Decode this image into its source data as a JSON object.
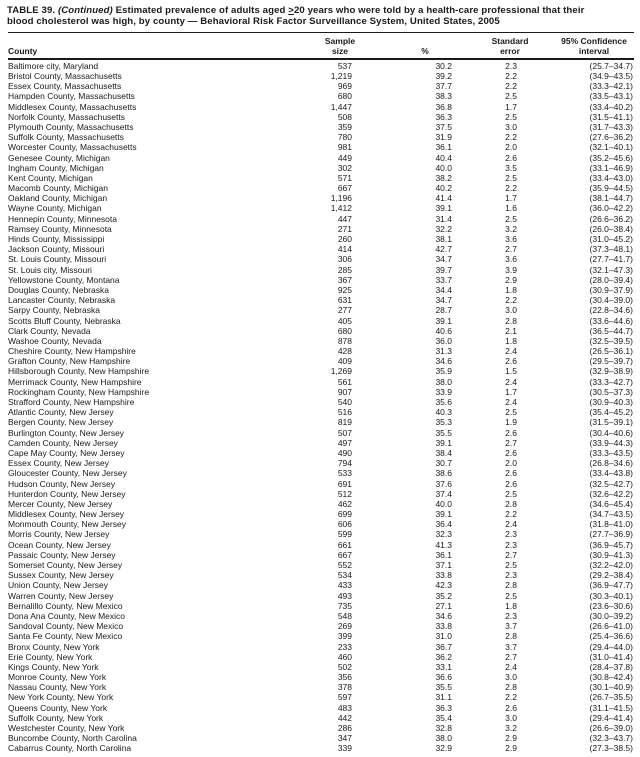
{
  "title": {
    "part1": "TABLE 39. ",
    "continued": "(Continued)",
    "part2": " Estimated prevalence of adults aged ",
    "geq": ">",
    "part3": "20 years who were told by a health-care professional that their",
    "line2": "blood cholesterol was high, by county — Behavioral Risk Factor Surveillance System, United States, 2005"
  },
  "table": {
    "columns": {
      "county": "County",
      "sample_size": "Sample\nsize",
      "percent": "%",
      "standard_error": "Standard\nerror",
      "confidence_interval": "95% Confidence\ninterval"
    },
    "rows": [
      {
        "county": "Baltimore city, Maryland",
        "sample_size": "537",
        "percent": "30.2",
        "standard_error": "2.3",
        "confidence_interval": "(25.7–34.7)"
      },
      {
        "county": "Bristol County, Massachusetts",
        "sample_size": "1,219",
        "percent": "39.2",
        "standard_error": "2.2",
        "confidence_interval": "(34.9–43.5)"
      },
      {
        "county": "Essex County, Massachusetts",
        "sample_size": "969",
        "percent": "37.7",
        "standard_error": "2.2",
        "confidence_interval": "(33.3–42.1)"
      },
      {
        "county": "Hampden County, Massachusetts",
        "sample_size": "680",
        "percent": "38.3",
        "standard_error": "2.5",
        "confidence_interval": "(33.5–43.1)"
      },
      {
        "county": "Middlesex County, Massachusetts",
        "sample_size": "1,447",
        "percent": "36.8",
        "standard_error": "1.7",
        "confidence_interval": "(33.4–40.2)"
      },
      {
        "county": "Norfolk County, Massachusetts",
        "sample_size": "508",
        "percent": "36.3",
        "standard_error": "2.5",
        "confidence_interval": "(31.5–41.1)"
      },
      {
        "county": "Plymouth County, Massachusetts",
        "sample_size": "359",
        "percent": "37.5",
        "standard_error": "3.0",
        "confidence_interval": "(31.7–43.3)"
      },
      {
        "county": "Suffolk County, Massachusetts",
        "sample_size": "780",
        "percent": "31.9",
        "standard_error": "2.2",
        "confidence_interval": "(27.6–36.2)"
      },
      {
        "county": "Worcester County, Massachusetts",
        "sample_size": "981",
        "percent": "36.1",
        "standard_error": "2.0",
        "confidence_interval": "(32.1–40.1)"
      },
      {
        "county": "Genesee County, Michigan",
        "sample_size": "449",
        "percent": "40.4",
        "standard_error": "2.6",
        "confidence_interval": "(35.2–45.6)"
      },
      {
        "county": "Ingham County, Michigan",
        "sample_size": "302",
        "percent": "40.0",
        "standard_error": "3.5",
        "confidence_interval": "(33.1–46.9)"
      },
      {
        "county": "Kent County, Michigan",
        "sample_size": "571",
        "percent": "38.2",
        "standard_error": "2.5",
        "confidence_interval": "(33.4–43.0)"
      },
      {
        "county": "Macomb County, Michigan",
        "sample_size": "667",
        "percent": "40.2",
        "standard_error": "2.2",
        "confidence_interval": "(35.9–44.5)"
      },
      {
        "county": "Oakland County, Michigan",
        "sample_size": "1,196",
        "percent": "41.4",
        "standard_error": "1.7",
        "confidence_interval": "(38.1–44.7)"
      },
      {
        "county": "Wayne County, Michigan",
        "sample_size": "1,412",
        "percent": "39.1",
        "standard_error": "1.6",
        "confidence_interval": "(36.0–42.2)"
      },
      {
        "county": "Hennepin County, Minnesota",
        "sample_size": "447",
        "percent": "31.4",
        "standard_error": "2.5",
        "confidence_interval": "(26.6–36.2)"
      },
      {
        "county": "Ramsey County, Minnesota",
        "sample_size": "271",
        "percent": "32.2",
        "standard_error": "3.2",
        "confidence_interval": "(26.0–38.4)"
      },
      {
        "county": "Hinds County, Mississippi",
        "sample_size": "260",
        "percent": "38.1",
        "standard_error": "3.6",
        "confidence_interval": "(31.0–45.2)"
      },
      {
        "county": "Jackson County, Missouri",
        "sample_size": "414",
        "percent": "42.7",
        "standard_error": "2.7",
        "confidence_interval": "(37.3–48.1)"
      },
      {
        "county": "St. Louis County, Missouri",
        "sample_size": "306",
        "percent": "34.7",
        "standard_error": "3.6",
        "confidence_interval": "(27.7–41.7)"
      },
      {
        "county": "St. Louis city, Missouri",
        "sample_size": "285",
        "percent": "39.7",
        "standard_error": "3.9",
        "confidence_interval": "(32.1–47.3)"
      },
      {
        "county": "Yellowstone County, Montana",
        "sample_size": "367",
        "percent": "33.7",
        "standard_error": "2.9",
        "confidence_interval": "(28.0–39.4)"
      },
      {
        "county": "Douglas County, Nebraska",
        "sample_size": "925",
        "percent": "34.4",
        "standard_error": "1.8",
        "confidence_interval": "(30.9–37.9)"
      },
      {
        "county": "Lancaster County, Nebraska",
        "sample_size": "631",
        "percent": "34.7",
        "standard_error": "2.2",
        "confidence_interval": "(30.4–39.0)"
      },
      {
        "county": "Sarpy County, Nebraska",
        "sample_size": "277",
        "percent": "28.7",
        "standard_error": "3.0",
        "confidence_interval": "(22.8–34.6)"
      },
      {
        "county": "Scotts Bluff County, Nebraska",
        "sample_size": "405",
        "percent": "39.1",
        "standard_error": "2.8",
        "confidence_interval": "(33.6–44.6)"
      },
      {
        "county": "Clark County, Nevada",
        "sample_size": "680",
        "percent": "40.6",
        "standard_error": "2.1",
        "confidence_interval": "(36.5–44.7)"
      },
      {
        "county": "Washoe County, Nevada",
        "sample_size": "878",
        "percent": "36.0",
        "standard_error": "1.8",
        "confidence_interval": "(32.5–39.5)"
      },
      {
        "county": "Cheshire County, New Hampshire",
        "sample_size": "428",
        "percent": "31.3",
        "standard_error": "2.4",
        "confidence_interval": "(26.5–36.1)"
      },
      {
        "county": "Grafton County, New Hampshire",
        "sample_size": "409",
        "percent": "34.6",
        "standard_error": "2.6",
        "confidence_interval": "(29.5–39.7)"
      },
      {
        "county": "Hillsborough County, New Hampshire",
        "sample_size": "1,269",
        "percent": "35.9",
        "standard_error": "1.5",
        "confidence_interval": "(32.9–38.9)"
      },
      {
        "county": "Merrimack County, New Hampshire",
        "sample_size": "561",
        "percent": "38.0",
        "standard_error": "2.4",
        "confidence_interval": "(33.3–42.7)"
      },
      {
        "county": "Rockingham County, New Hampshire",
        "sample_size": "907",
        "percent": "33.9",
        "standard_error": "1.7",
        "confidence_interval": "(30.5–37.3)"
      },
      {
        "county": "Strafford County, New Hampshire",
        "sample_size": "540",
        "percent": "35.6",
        "standard_error": "2.4",
        "confidence_interval": "(30.9–40.3)"
      },
      {
        "county": "Atlantic County, New Jersey",
        "sample_size": "516",
        "percent": "40.3",
        "standard_error": "2.5",
        "confidence_interval": "(35.4–45.2)"
      },
      {
        "county": "Bergen County, New Jersey",
        "sample_size": "819",
        "percent": "35.3",
        "standard_error": "1.9",
        "confidence_interval": "(31.5–39.1)"
      },
      {
        "county": "Burlington County, New Jersey",
        "sample_size": "507",
        "percent": "35.5",
        "standard_error": "2.6",
        "confidence_interval": "(30.4–40.6)"
      },
      {
        "county": "Camden County, New Jersey",
        "sample_size": "497",
        "percent": "39.1",
        "standard_error": "2.7",
        "confidence_interval": "(33.9–44.3)"
      },
      {
        "county": "Cape May County, New Jersey",
        "sample_size": "490",
        "percent": "38.4",
        "standard_error": "2.6",
        "confidence_interval": "(33.3–43.5)"
      },
      {
        "county": "Essex County, New Jersey",
        "sample_size": "794",
        "percent": "30.7",
        "standard_error": "2.0",
        "confidence_interval": "(26.8–34.6)"
      },
      {
        "county": "Gloucester County, New Jersey",
        "sample_size": "533",
        "percent": "38.6",
        "standard_error": "2.6",
        "confidence_interval": "(33.4–43.8)"
      },
      {
        "county": "Hudson County, New Jersey",
        "sample_size": "691",
        "percent": "37.6",
        "standard_error": "2.6",
        "confidence_interval": "(32.5–42.7)"
      },
      {
        "county": "Hunterdon County, New Jersey",
        "sample_size": "512",
        "percent": "37.4",
        "standard_error": "2.5",
        "confidence_interval": "(32.6–42.2)"
      },
      {
        "county": "Mercer County, New Jersey",
        "sample_size": "462",
        "percent": "40.0",
        "standard_error": "2.8",
        "confidence_interval": "(34.6–45.4)"
      },
      {
        "county": "Middlesex County, New Jersey",
        "sample_size": "699",
        "percent": "39.1",
        "standard_error": "2.2",
        "confidence_interval": "(34.7–43.5)"
      },
      {
        "county": "Monmouth County, New Jersey",
        "sample_size": "606",
        "percent": "36.4",
        "standard_error": "2.4",
        "confidence_interval": "(31.8–41.0)"
      },
      {
        "county": "Morris County, New Jersey",
        "sample_size": "599",
        "percent": "32.3",
        "standard_error": "2.3",
        "confidence_interval": "(27.7–36.9)"
      },
      {
        "county": "Ocean County, New Jersey",
        "sample_size": "661",
        "percent": "41.3",
        "standard_error": "2.3",
        "confidence_interval": "(36.9–45.7)"
      },
      {
        "county": "Passaic County, New Jersey",
        "sample_size": "667",
        "percent": "36.1",
        "standard_error": "2.7",
        "confidence_interval": "(30.9–41.3)"
      },
      {
        "county": "Somerset County, New Jersey",
        "sample_size": "552",
        "percent": "37.1",
        "standard_error": "2.5",
        "confidence_interval": "(32.2–42.0)"
      },
      {
        "county": "Sussex County, New Jersey",
        "sample_size": "534",
        "percent": "33.8",
        "standard_error": "2.3",
        "confidence_interval": "(29.2–38.4)"
      },
      {
        "county": "Union County, New Jersey",
        "sample_size": "433",
        "percent": "42.3",
        "standard_error": "2.8",
        "confidence_interval": "(36.9–47.7)"
      },
      {
        "county": "Warren County, New Jersey",
        "sample_size": "493",
        "percent": "35.2",
        "standard_error": "2.5",
        "confidence_interval": "(30.3–40.1)"
      },
      {
        "county": "Bernalillo County, New Mexico",
        "sample_size": "735",
        "percent": "27.1",
        "standard_error": "1.8",
        "confidence_interval": "(23.6–30.6)"
      },
      {
        "county": "Dona Ana County, New Mexico",
        "sample_size": "548",
        "percent": "34.6",
        "standard_error": "2.3",
        "confidence_interval": "(30.0–39.2)"
      },
      {
        "county": "Sandoval County, New Mexico",
        "sample_size": "269",
        "percent": "33.8",
        "standard_error": "3.7",
        "confidence_interval": "(26.6–41.0)"
      },
      {
        "county": "Santa Fe County, New Mexico",
        "sample_size": "399",
        "percent": "31.0",
        "standard_error": "2.8",
        "confidence_interval": "(25.4–36.6)"
      },
      {
        "county": "Bronx County, New York",
        "sample_size": "233",
        "percent": "36.7",
        "standard_error": "3.7",
        "confidence_interval": "(29.4–44.0)"
      },
      {
        "county": "Erie County, New York",
        "sample_size": "460",
        "percent": "36.2",
        "standard_error": "2.7",
        "confidence_interval": "(31.0–41.4)"
      },
      {
        "county": "Kings County, New York",
        "sample_size": "502",
        "percent": "33.1",
        "standard_error": "2.4",
        "confidence_interval": "(28.4–37.8)"
      },
      {
        "county": "Monroe County, New York",
        "sample_size": "356",
        "percent": "36.6",
        "standard_error": "3.0",
        "confidence_interval": "(30.8–42.4)"
      },
      {
        "county": "Nassau County, New York",
        "sample_size": "378",
        "percent": "35.5",
        "standard_error": "2.8",
        "confidence_interval": "(30.1–40.9)"
      },
      {
        "county": "New York County, New York",
        "sample_size": "597",
        "percent": "31.1",
        "standard_error": "2.2",
        "confidence_interval": "(26.7–35.5)"
      },
      {
        "county": "Queens County, New York",
        "sample_size": "483",
        "percent": "36.3",
        "standard_error": "2.6",
        "confidence_interval": "(31.1–41.5)"
      },
      {
        "county": "Suffolk County, New York",
        "sample_size": "442",
        "percent": "35.4",
        "standard_error": "3.0",
        "confidence_interval": "(29.4–41.4)"
      },
      {
        "county": "Westchester County, New York",
        "sample_size": "286",
        "percent": "32.8",
        "standard_error": "3.2",
        "confidence_interval": "(26.6–39.0)"
      },
      {
        "county": "Buncombe County, North Carolina",
        "sample_size": "347",
        "percent": "38.0",
        "standard_error": "2.9",
        "confidence_interval": "(32.3–43.7)"
      },
      {
        "county": "Cabarrus County, North Carolina",
        "sample_size": "339",
        "percent": "32.9",
        "standard_error": "2.9",
        "confidence_interval": "(27.3–38.5)"
      }
    ]
  }
}
